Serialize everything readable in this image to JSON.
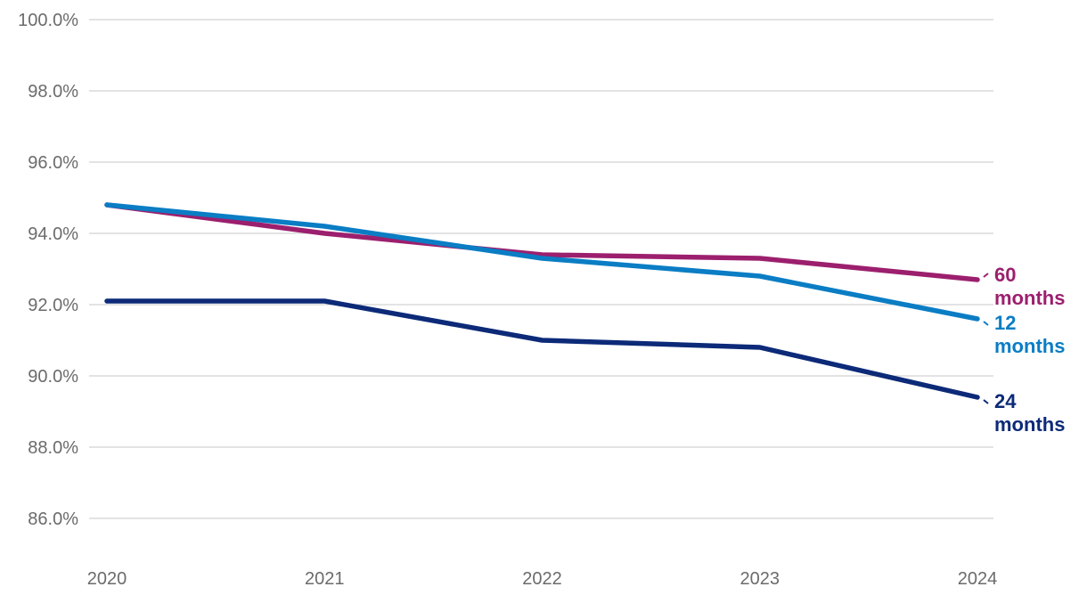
{
  "chart_data": {
    "type": "line",
    "x": [
      "2020",
      "2021",
      "2022",
      "2023",
      "2024"
    ],
    "series": [
      {
        "name": "60 months",
        "label_lines": [
          "60",
          "months"
        ],
        "color": "#9c1f6e",
        "values": [
          94.8,
          94.0,
          93.4,
          93.3,
          92.7
        ]
      },
      {
        "name": "12 months",
        "label_lines": [
          "12",
          "months"
        ],
        "color": "#0a7dc4",
        "values": [
          94.8,
          94.2,
          93.3,
          92.8,
          91.6
        ]
      },
      {
        "name": "24 months",
        "label_lines": [
          "24",
          "months"
        ],
        "color": "#0c2a78",
        "values": [
          92.1,
          92.1,
          91.0,
          90.8,
          89.4
        ]
      }
    ],
    "y_ticks": [
      "86.0%",
      "88.0%",
      "90.0%",
      "92.0%",
      "94.0%",
      "96.0%",
      "98.0%",
      "100.0%"
    ],
    "y_tick_values": [
      86,
      88,
      90,
      92,
      94,
      96,
      98,
      100
    ],
    "ylim": [
      85,
      100
    ],
    "grid": "horizontal",
    "legend": "direct labels at line ends (right)",
    "title": "",
    "xlabel": "",
    "ylabel": "",
    "colors": {
      "grid": "#d2d2d2",
      "tick_text": "#6b6b6b"
    }
  }
}
